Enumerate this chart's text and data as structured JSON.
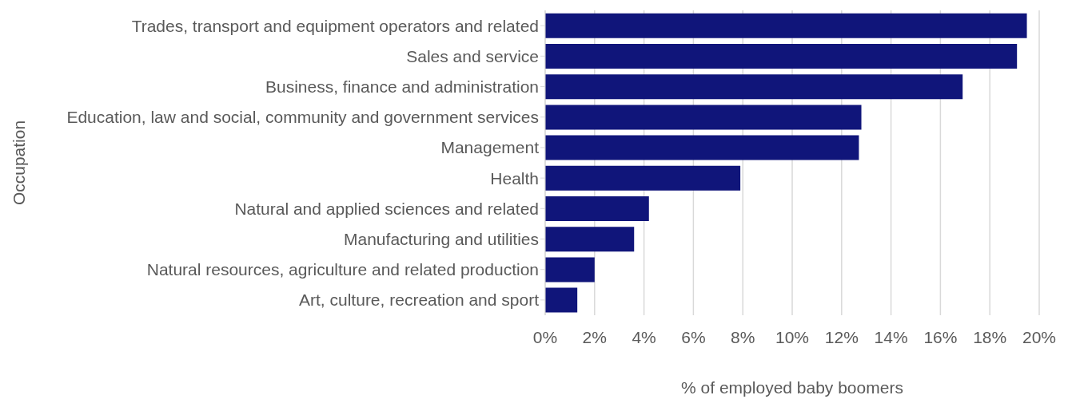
{
  "chart_data": {
    "type": "bar",
    "orientation": "horizontal",
    "xlabel": "% of employed baby boomers",
    "ylabel": "Occupation",
    "categories": [
      "Trades, transport and equipment operators and related",
      "Sales and service",
      "Business, finance and administration",
      "Education, law and social, community and government services",
      "Management",
      "Health",
      "Natural and applied sciences and related",
      "Manufacturing and utilities",
      "Natural resources, agriculture and related production",
      "Art, culture, recreation and sport"
    ],
    "values": [
      19.5,
      19.1,
      16.9,
      12.8,
      12.7,
      7.9,
      4.2,
      3.6,
      2.0,
      1.3
    ],
    "color": "#10157a",
    "xlim": [
      0,
      20
    ],
    "xticks": [
      {
        "value": 0,
        "label": "0%"
      },
      {
        "value": 2,
        "label": "2%"
      },
      {
        "value": 4,
        "label": "4%"
      },
      {
        "value": 6,
        "label": "6%"
      },
      {
        "value": 8,
        "label": "8%"
      },
      {
        "value": 10,
        "label": "10%"
      },
      {
        "value": 12,
        "label": "12%"
      },
      {
        "value": 14,
        "label": "14%"
      },
      {
        "value": 16,
        "label": "16%"
      },
      {
        "value": 18,
        "label": "18%"
      },
      {
        "value": 20,
        "label": "20%"
      }
    ],
    "grid": "x",
    "legend": false
  }
}
